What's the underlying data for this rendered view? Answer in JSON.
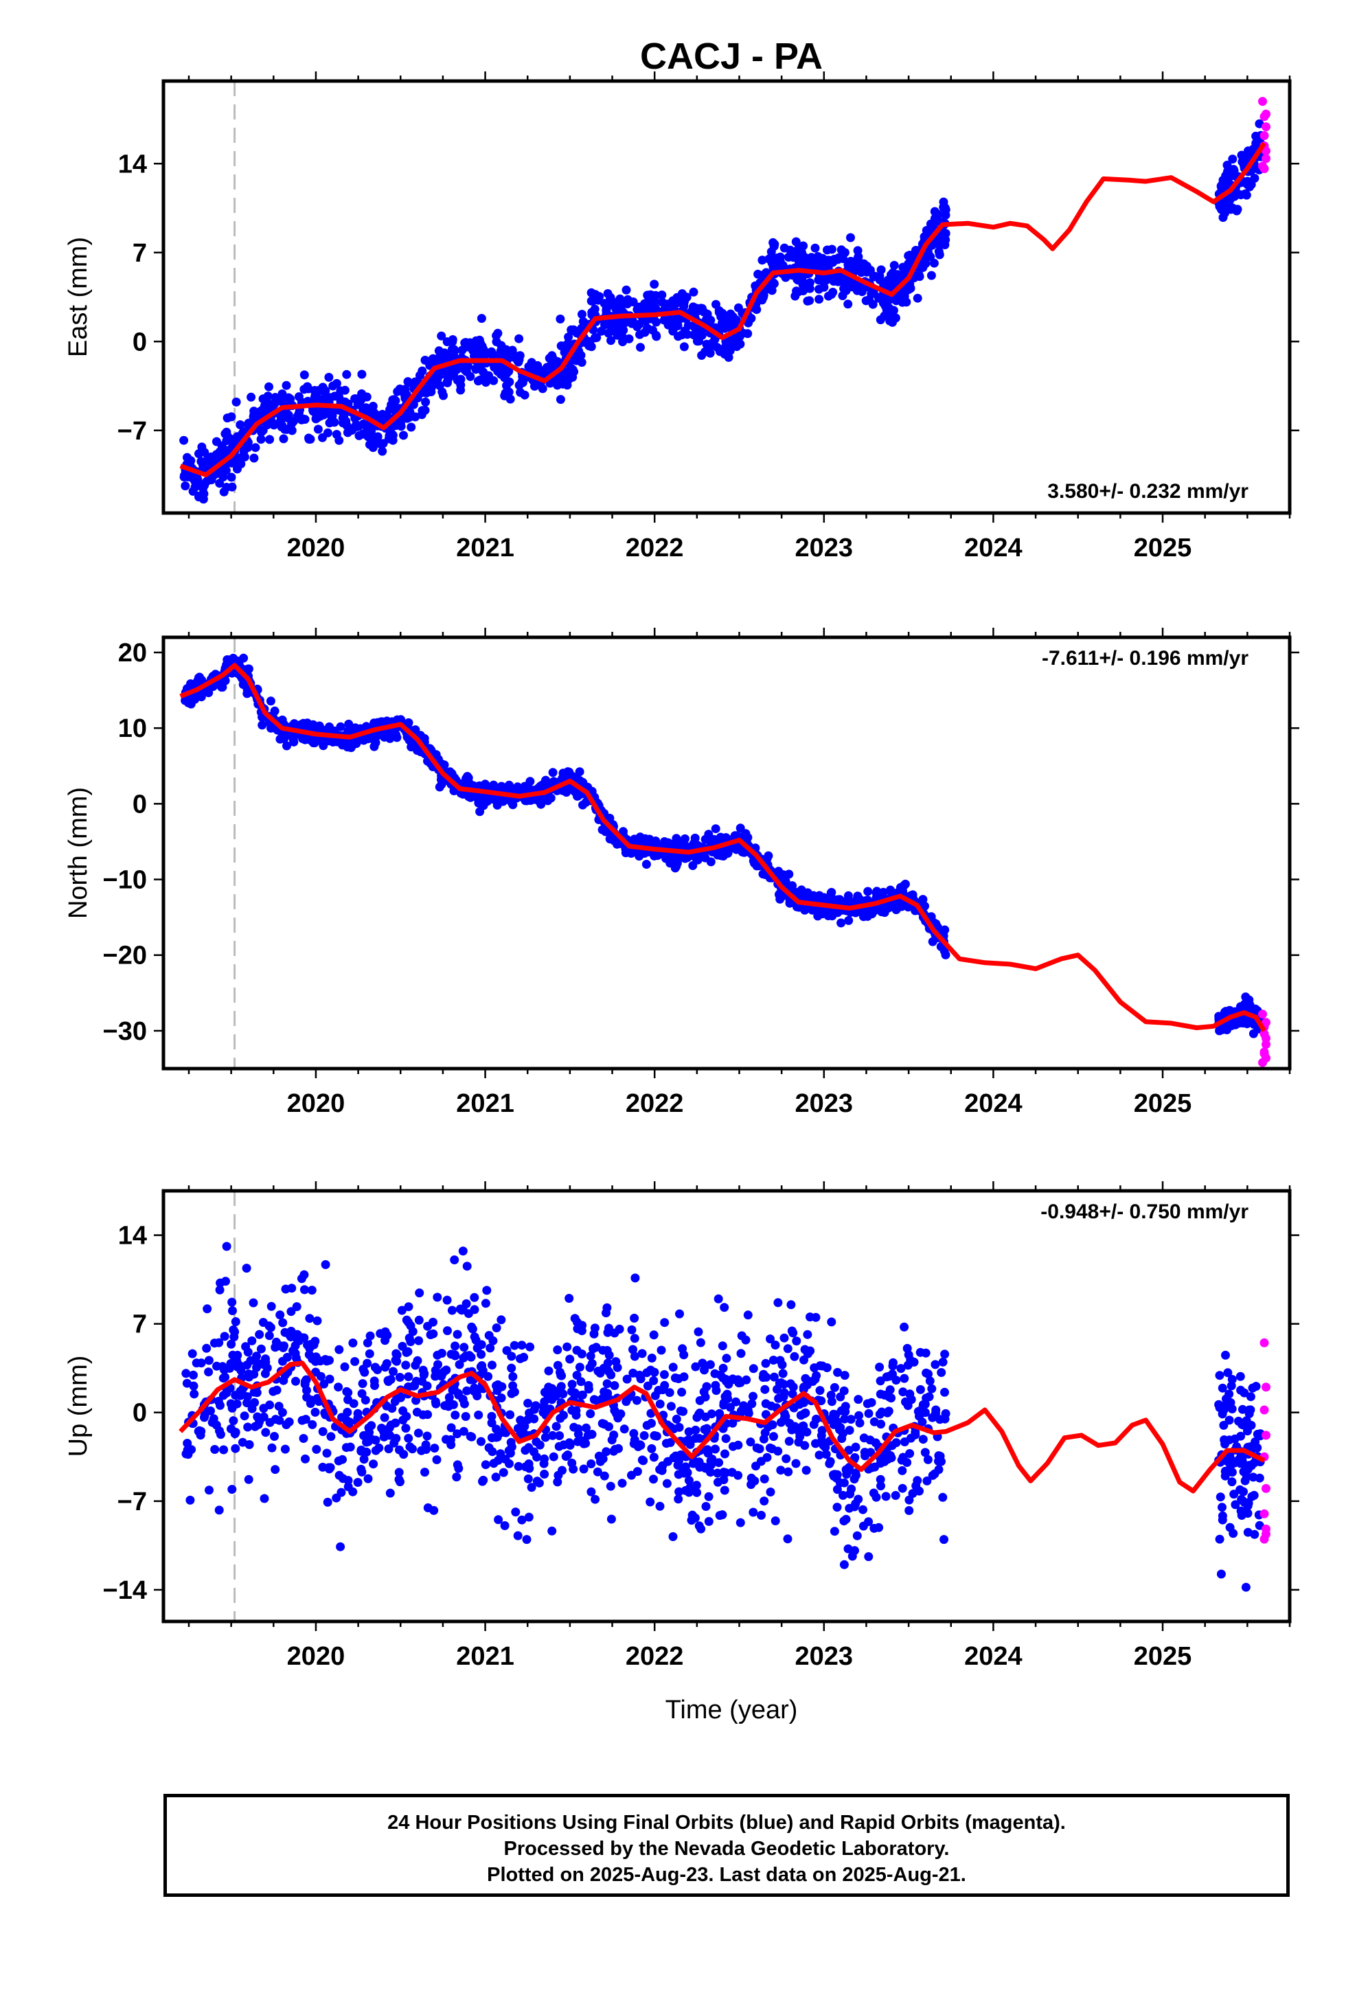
{
  "title": "CACJ - PA",
  "xlabel": "Time (year)",
  "footer": {
    "line1": "24 Hour Positions Using Final Orbits (blue) and Rapid Orbits (magenta).",
    "line2": "Processed by the Nevada Geodetic Laboratory.",
    "line3": "Plotted on 2025-Aug-23. Last data on 2025-Aug-21."
  },
  "colors": {
    "final": "#0000ff",
    "rapid": "#ff00ff",
    "model": "#ff0000",
    "event_line": "#bbbbbb"
  },
  "chart_data": [
    {
      "type": "scatter",
      "ylabel": "East (mm)",
      "rate_label": "3.580+/- 0.232 mm/yr",
      "rate_position": "bottom-right",
      "xlim": [
        2019.1,
        2025.75
      ],
      "ylim": [
        -13.5,
        20.5
      ],
      "yticks": [
        -7,
        0,
        7,
        14
      ],
      "xticks": [
        2020,
        2021,
        2022,
        2023,
        2024,
        2025
      ],
      "event_lines": [
        2019.52
      ],
      "model": [
        [
          2019.2,
          -9.8
        ],
        [
          2019.35,
          -10.5
        ],
        [
          2019.5,
          -9.0
        ],
        [
          2019.65,
          -6.5
        ],
        [
          2019.8,
          -5.2
        ],
        [
          2020.0,
          -5.0
        ],
        [
          2020.15,
          -5.1
        ],
        [
          2020.3,
          -6.0
        ],
        [
          2020.4,
          -6.8
        ],
        [
          2020.5,
          -5.6
        ],
        [
          2020.6,
          -3.8
        ],
        [
          2020.7,
          -2.1
        ],
        [
          2020.85,
          -1.5
        ],
        [
          2021.0,
          -1.5
        ],
        [
          2021.1,
          -1.5
        ],
        [
          2021.2,
          -2.3
        ],
        [
          2021.35,
          -3.1
        ],
        [
          2021.45,
          -2.1
        ],
        [
          2021.55,
          0.0
        ],
        [
          2021.65,
          1.8
        ],
        [
          2021.8,
          2.0
        ],
        [
          2022.0,
          2.1
        ],
        [
          2022.15,
          2.3
        ],
        [
          2022.3,
          1.2
        ],
        [
          2022.4,
          0.3
        ],
        [
          2022.5,
          1.0
        ],
        [
          2022.6,
          3.8
        ],
        [
          2022.7,
          5.4
        ],
        [
          2022.85,
          5.6
        ],
        [
          2023.0,
          5.4
        ],
        [
          2023.1,
          5.6
        ],
        [
          2023.25,
          4.6
        ],
        [
          2023.4,
          3.7
        ],
        [
          2023.5,
          5.0
        ],
        [
          2023.6,
          7.6
        ],
        [
          2023.7,
          9.2
        ],
        [
          2023.85,
          9.3
        ],
        [
          2024.0,
          9.0
        ],
        [
          2024.1,
          9.3
        ],
        [
          2024.2,
          9.1
        ],
        [
          2024.3,
          8.0
        ],
        [
          2024.35,
          7.3
        ],
        [
          2024.45,
          8.8
        ],
        [
          2024.55,
          11.0
        ],
        [
          2024.65,
          12.8
        ],
        [
          2024.8,
          12.7
        ],
        [
          2024.9,
          12.6
        ],
        [
          2025.05,
          12.9
        ],
        [
          2025.2,
          11.8
        ],
        [
          2025.3,
          11.0
        ],
        [
          2025.4,
          11.9
        ],
        [
          2025.5,
          13.6
        ],
        [
          2025.6,
          15.6
        ]
      ],
      "final_segments": [
        {
          "start": 2019.22,
          "end": 2023.72,
          "noise": 1.05,
          "n": 1400
        },
        {
          "start": 2025.33,
          "end": 2025.58,
          "noise": 1.0,
          "n": 120
        }
      ],
      "rapid": [
        [
          2025.59,
          18.9
        ],
        [
          2025.6,
          17.7
        ],
        [
          2025.61,
          16.9
        ],
        [
          2025.6,
          15.4
        ],
        [
          2025.61,
          14.4
        ],
        [
          2025.59,
          13.8
        ],
        [
          2025.6,
          16.2
        ],
        [
          2025.61,
          17.9
        ],
        [
          2025.6,
          13.6
        ],
        [
          2025.61,
          15.0
        ]
      ],
      "seed": 11
    },
    {
      "type": "scatter",
      "ylabel": "North (mm)",
      "rate_label": "-7.611+/- 0.196 mm/yr",
      "rate_position": "top-right",
      "xlim": [
        2019.1,
        2025.75
      ],
      "ylim": [
        -35,
        22
      ],
      "yticks": [
        -30,
        -20,
        -10,
        0,
        10,
        20
      ],
      "xticks": [
        2020,
        2021,
        2022,
        2023,
        2024,
        2025
      ],
      "event_lines": [
        2019.52
      ],
      "model": [
        [
          2019.2,
          14.2
        ],
        [
          2019.3,
          15.1
        ],
        [
          2019.45,
          17.0
        ],
        [
          2019.52,
          18.3
        ],
        [
          2019.6,
          16.5
        ],
        [
          2019.7,
          12.0
        ],
        [
          2019.8,
          10.0
        ],
        [
          2020.0,
          9.2
        ],
        [
          2020.2,
          8.8
        ],
        [
          2020.35,
          9.8
        ],
        [
          2020.5,
          10.5
        ],
        [
          2020.6,
          8.5
        ],
        [
          2020.75,
          4.0
        ],
        [
          2020.85,
          2.0
        ],
        [
          2021.0,
          1.6
        ],
        [
          2021.2,
          1.0
        ],
        [
          2021.35,
          1.5
        ],
        [
          2021.5,
          3.0
        ],
        [
          2021.6,
          1.5
        ],
        [
          2021.7,
          -2.2
        ],
        [
          2021.85,
          -5.6
        ],
        [
          2022.0,
          -6.0
        ],
        [
          2022.2,
          -6.4
        ],
        [
          2022.35,
          -5.8
        ],
        [
          2022.5,
          -4.8
        ],
        [
          2022.6,
          -6.8
        ],
        [
          2022.75,
          -11.0
        ],
        [
          2022.85,
          -13.0
        ],
        [
          2023.0,
          -13.4
        ],
        [
          2023.15,
          -13.8
        ],
        [
          2023.3,
          -13.2
        ],
        [
          2023.45,
          -12.2
        ],
        [
          2023.55,
          -13.4
        ],
        [
          2023.65,
          -16.8
        ],
        [
          2023.8,
          -20.5
        ],
        [
          2023.95,
          -21.0
        ],
        [
          2024.1,
          -21.2
        ],
        [
          2024.25,
          -21.8
        ],
        [
          2024.4,
          -20.5
        ],
        [
          2024.5,
          -20.0
        ],
        [
          2024.6,
          -22.0
        ],
        [
          2024.75,
          -26.2
        ],
        [
          2024.9,
          -28.8
        ],
        [
          2025.05,
          -29.0
        ],
        [
          2025.2,
          -29.6
        ],
        [
          2025.3,
          -29.4
        ],
        [
          2025.4,
          -28.2
        ],
        [
          2025.48,
          -27.6
        ],
        [
          2025.55,
          -28.2
        ],
        [
          2025.6,
          -30.0
        ]
      ],
      "final_segments": [
        {
          "start": 2019.22,
          "end": 2023.72,
          "noise": 0.75,
          "n": 1400
        },
        {
          "start": 2025.33,
          "end": 2025.58,
          "noise": 0.9,
          "n": 120
        }
      ],
      "rapid": [
        [
          2025.59,
          -27.8
        ],
        [
          2025.6,
          -29.5
        ],
        [
          2025.61,
          -31.0
        ],
        [
          2025.6,
          -32.8
        ],
        [
          2025.61,
          -33.6
        ],
        [
          2025.59,
          -34.2
        ],
        [
          2025.6,
          -30.4
        ],
        [
          2025.61,
          -28.9
        ],
        [
          2025.6,
          -33.0
        ],
        [
          2025.61,
          -31.8
        ]
      ],
      "seed": 23
    },
    {
      "type": "scatter",
      "ylabel": "Up (mm)",
      "rate_label": "-0.948+/- 0.750 mm/yr",
      "rate_position": "top-right",
      "xlim": [
        2019.1,
        2025.75
      ],
      "ylim": [
        -16.5,
        17.5
      ],
      "yticks": [
        -14,
        -7,
        0,
        7,
        14
      ],
      "xticks": [
        2020,
        2021,
        2022,
        2023,
        2024,
        2025
      ],
      "event_lines": [
        2019.52
      ],
      "model": [
        [
          2019.2,
          -1.5
        ],
        [
          2019.32,
          0.2
        ],
        [
          2019.42,
          1.8
        ],
        [
          2019.52,
          2.6
        ],
        [
          2019.62,
          2.0
        ],
        [
          2019.72,
          2.4
        ],
        [
          2019.85,
          3.8
        ],
        [
          2019.92,
          3.9
        ],
        [
          2020.0,
          2.4
        ],
        [
          2020.1,
          -0.5
        ],
        [
          2020.2,
          -1.5
        ],
        [
          2020.32,
          -0.2
        ],
        [
          2020.42,
          1.2
        ],
        [
          2020.5,
          1.8
        ],
        [
          2020.6,
          1.3
        ],
        [
          2020.72,
          1.6
        ],
        [
          2020.85,
          2.8
        ],
        [
          2020.92,
          3.1
        ],
        [
          2021.0,
          2.2
        ],
        [
          2021.1,
          -0.5
        ],
        [
          2021.2,
          -2.3
        ],
        [
          2021.3,
          -1.8
        ],
        [
          2021.4,
          0.0
        ],
        [
          2021.5,
          0.8
        ],
        [
          2021.65,
          0.4
        ],
        [
          2021.78,
          1.0
        ],
        [
          2021.88,
          2.0
        ],
        [
          2021.95,
          1.5
        ],
        [
          2022.05,
          -1.0
        ],
        [
          2022.15,
          -2.5
        ],
        [
          2022.22,
          -3.5
        ],
        [
          2022.32,
          -2.0
        ],
        [
          2022.42,
          -0.3
        ],
        [
          2022.55,
          -0.5
        ],
        [
          2022.65,
          -0.8
        ],
        [
          2022.75,
          0.3
        ],
        [
          2022.88,
          1.5
        ],
        [
          2022.95,
          0.8
        ],
        [
          2023.05,
          -2.0
        ],
        [
          2023.15,
          -3.8
        ],
        [
          2023.22,
          -4.5
        ],
        [
          2023.32,
          -3.2
        ],
        [
          2023.42,
          -1.5
        ],
        [
          2023.52,
          -1.0
        ],
        [
          2023.65,
          -1.6
        ],
        [
          2023.72,
          -1.5
        ],
        [
          2023.85,
          -0.8
        ],
        [
          2023.95,
          0.2
        ],
        [
          2024.05,
          -1.5
        ],
        [
          2024.15,
          -4.2
        ],
        [
          2024.22,
          -5.4
        ],
        [
          2024.32,
          -4.0
        ],
        [
          2024.42,
          -2.0
        ],
        [
          2024.52,
          -1.8
        ],
        [
          2024.62,
          -2.6
        ],
        [
          2024.72,
          -2.4
        ],
        [
          2024.82,
          -1.0
        ],
        [
          2024.9,
          -0.6
        ],
        [
          2025.0,
          -2.5
        ],
        [
          2025.1,
          -5.5
        ],
        [
          2025.18,
          -6.2
        ],
        [
          2025.28,
          -4.5
        ],
        [
          2025.38,
          -3.0
        ],
        [
          2025.48,
          -3.0
        ],
        [
          2025.6,
          -3.8
        ]
      ],
      "final_segments": [
        {
          "start": 2019.22,
          "end": 2023.72,
          "noise": 3.6,
          "n": 1300
        },
        {
          "start": 2025.33,
          "end": 2025.58,
          "noise": 3.6,
          "n": 120
        }
      ],
      "rapid": [
        [
          2025.6,
          5.5
        ],
        [
          2025.61,
          2.0
        ],
        [
          2025.6,
          0.2
        ],
        [
          2025.61,
          -1.8
        ],
        [
          2025.6,
          -3.5
        ],
        [
          2025.61,
          -6.0
        ],
        [
          2025.6,
          -8.0
        ],
        [
          2025.61,
          -9.2
        ],
        [
          2025.6,
          -10.0
        ],
        [
          2025.61,
          -9.6
        ]
      ],
      "seed": 37
    }
  ]
}
